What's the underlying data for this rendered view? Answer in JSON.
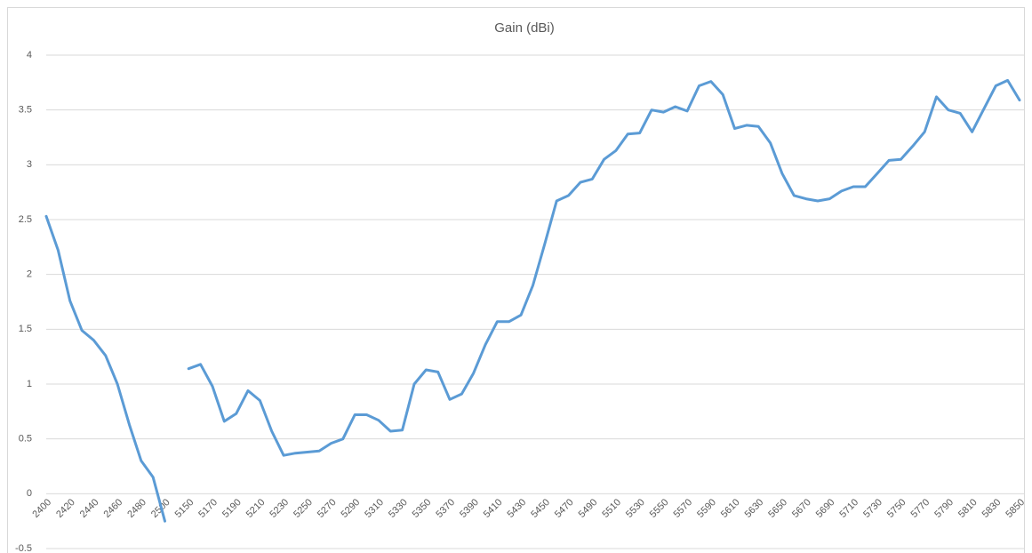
{
  "chart_data": {
    "type": "line",
    "title": "Gain (dBi)",
    "categories": [
      "2400",
      null,
      "2420",
      null,
      "2440",
      null,
      "2460",
      null,
      "2480",
      null,
      "2500",
      null,
      "5150",
      null,
      "5170",
      null,
      "5190",
      null,
      "5210",
      null,
      "5230",
      null,
      "5250",
      null,
      "5270",
      null,
      "5290",
      null,
      "5310",
      null,
      "5330",
      null,
      "5350",
      null,
      "5370",
      null,
      "5390",
      null,
      "5410",
      null,
      "5430",
      null,
      "5450",
      null,
      "5470",
      null,
      "5490",
      null,
      "5510",
      null,
      "5530",
      null,
      "5550",
      null,
      "5570",
      null,
      "5590",
      null,
      "5610",
      null,
      "5630",
      null,
      "5650",
      null,
      "5670",
      null,
      "5690",
      null,
      "5710",
      null,
      "5730",
      null,
      "5750",
      null,
      "5770",
      null,
      "5790",
      null,
      "5810",
      null,
      "5830",
      null,
      "5850"
    ],
    "series": [
      {
        "name": "Gain (dBi)",
        "color": "#5b9bd5",
        "values": [
          2.53,
          2.22,
          1.76,
          1.49,
          1.4,
          1.26,
          1.0,
          0.63,
          0.3,
          0.15,
          -0.25,
          null,
          1.14,
          1.18,
          0.98,
          0.66,
          0.73,
          0.94,
          0.85,
          0.57,
          0.35,
          0.37,
          0.38,
          0.39,
          0.46,
          0.5,
          0.72,
          0.72,
          0.67,
          0.57,
          0.58,
          1.0,
          1.13,
          1.11,
          0.86,
          0.91,
          1.1,
          1.36,
          1.57,
          1.57,
          1.63,
          1.9,
          2.28,
          2.67,
          2.72,
          2.84,
          2.87,
          3.05,
          3.13,
          3.28,
          3.29,
          3.5,
          3.48,
          3.53,
          3.49,
          3.72,
          3.76,
          3.64,
          3.33,
          3.36,
          3.35,
          3.2,
          2.92,
          2.72,
          2.69,
          2.67,
          2.69,
          2.76,
          2.8,
          2.8,
          2.92,
          3.04,
          3.05,
          3.17,
          3.3,
          3.62,
          3.5,
          3.47,
          3.3,
          3.51,
          3.72,
          3.77,
          3.59
        ]
      }
    ],
    "ylim": [
      -0.5,
      4
    ],
    "yticks": [
      -0.5,
      0,
      0.5,
      1,
      1.5,
      2,
      2.5,
      3,
      3.5,
      4
    ],
    "grid": true
  }
}
